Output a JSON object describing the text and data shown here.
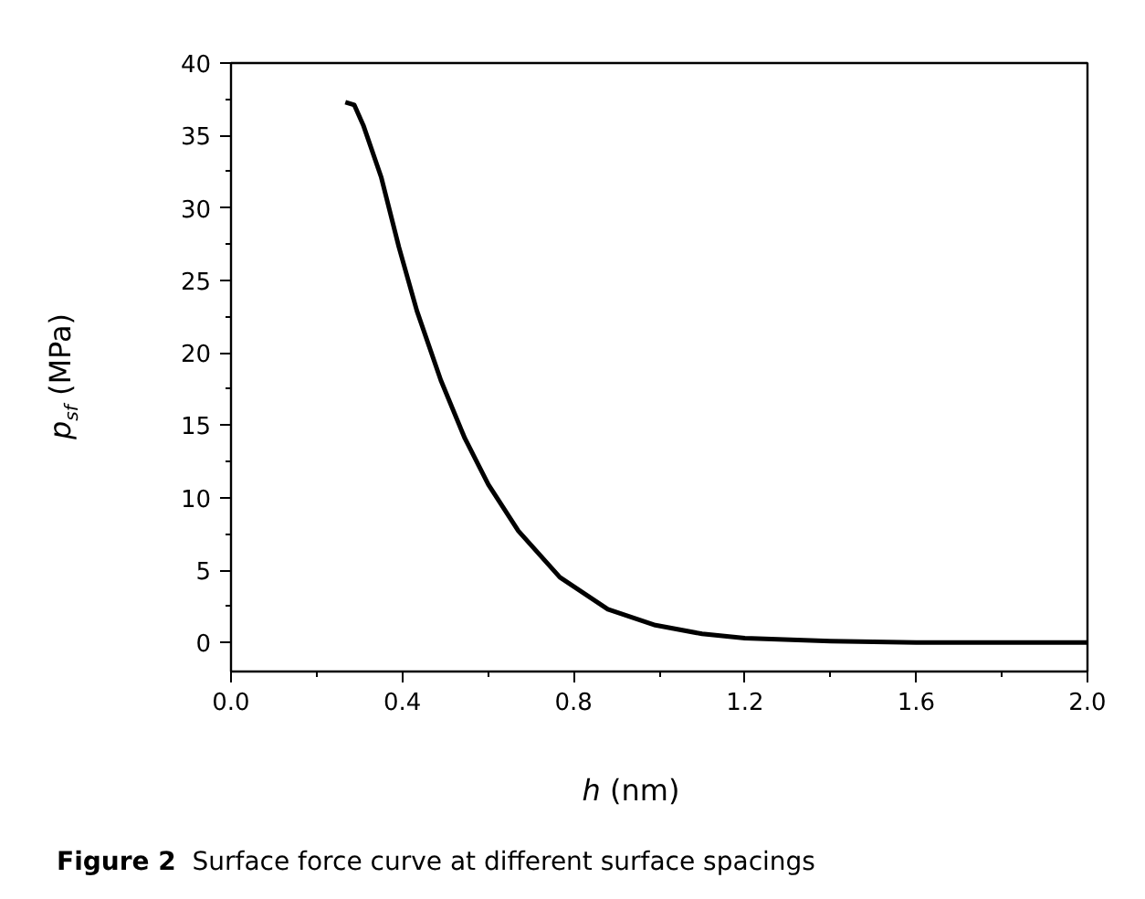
{
  "chart_data": {
    "type": "line",
    "xlabel": "h (nm)",
    "ylabel": "p$_{sf}$ (MPa)",
    "annotations": [
      "Figure 2  Surface force curve at different surface spacings"
    ],
    "x": [
      0.267,
      0.288,
      0.309,
      0.351,
      0.392,
      0.434,
      0.49,
      0.546,
      0.601,
      0.671,
      0.768,
      0.88,
      0.991,
      1.1,
      1.2,
      1.4,
      1.6,
      1.8,
      2.0
    ],
    "series": [
      {
        "color": "#000000",
        "values": [
          37.3,
          37.1,
          35.7,
          32.1,
          27.3,
          22.9,
          18.1,
          14.1,
          10.9,
          7.7,
          4.5,
          2.3,
          1.2,
          0.6,
          0.3,
          0.1,
          0.0,
          0.0,
          0.0
        ]
      }
    ],
    "xlim": [
      0.0,
      2.0
    ],
    "ylim": [
      -2.0,
      40.0
    ],
    "xticks": [
      {
        "value": 0.0,
        "label": "0.0"
      },
      0.4,
      0.8,
      1.2,
      1.6,
      {
        "value": 2.0,
        "label": "2.0"
      }
    ],
    "yticks": [
      0,
      5,
      10,
      15,
      20,
      25,
      30,
      35,
      40
    ],
    "grid": false,
    "marker": "none",
    "line_style": "solid"
  }
}
